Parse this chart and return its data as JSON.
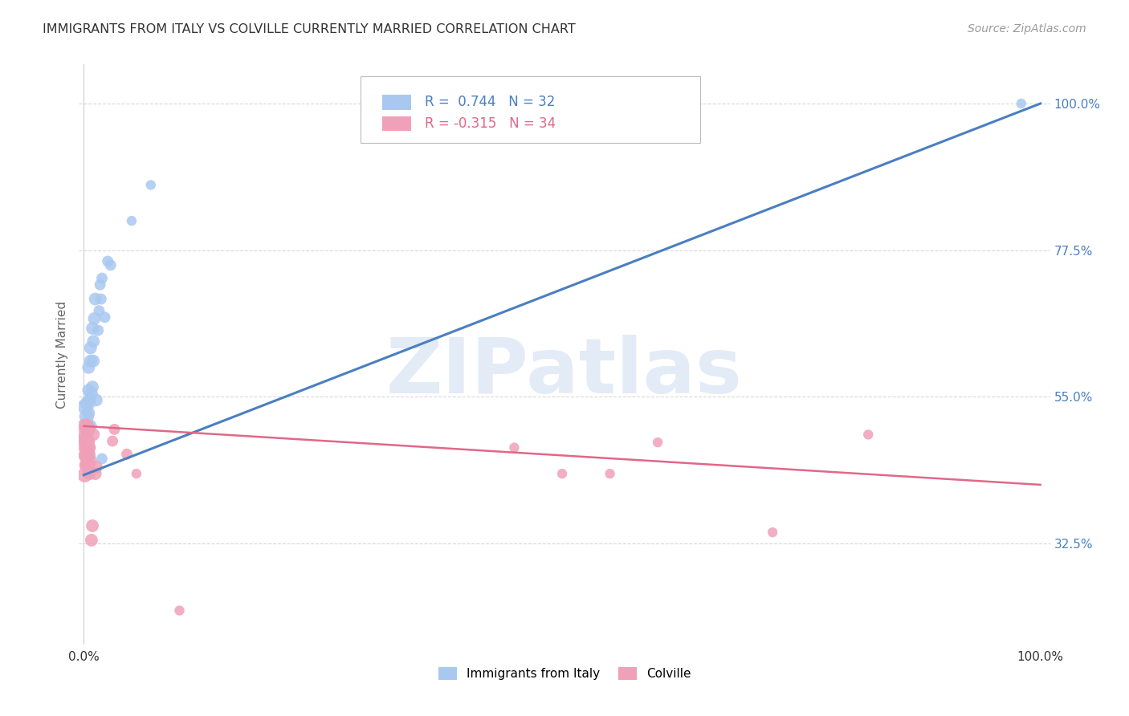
{
  "title": "IMMIGRANTS FROM ITALY VS COLVILLE CURRENTLY MARRIED CORRELATION CHART",
  "source": "Source: ZipAtlas.com",
  "ylabel": "Currently Married",
  "legend_blue_r": "0.744",
  "legend_blue_n": "32",
  "legend_pink_r": "-0.315",
  "legend_pink_n": "34",
  "blue_color": "#a8c8f0",
  "pink_color": "#f0a0b8",
  "blue_line_color": "#4a7fc0",
  "pink_line_color": "#e06888",
  "blue_scatter": [
    [
      0.001,
      0.535
    ],
    [
      0.003,
      0.52
    ],
    [
      0.004,
      0.54
    ],
    [
      0.005,
      0.56
    ],
    [
      0.004,
      0.5
    ],
    [
      0.005,
      0.525
    ],
    [
      0.005,
      0.595
    ],
    [
      0.006,
      0.46
    ],
    [
      0.006,
      0.545
    ],
    [
      0.007,
      0.605
    ],
    [
      0.007,
      0.625
    ],
    [
      0.007,
      0.505
    ],
    [
      0.008,
      0.555
    ],
    [
      0.009,
      0.655
    ],
    [
      0.009,
      0.565
    ],
    [
      0.01,
      0.635
    ],
    [
      0.01,
      0.605
    ],
    [
      0.011,
      0.67
    ],
    [
      0.012,
      0.7
    ],
    [
      0.013,
      0.545
    ],
    [
      0.015,
      0.652
    ],
    [
      0.016,
      0.682
    ],
    [
      0.017,
      0.722
    ],
    [
      0.018,
      0.7
    ],
    [
      0.019,
      0.732
    ],
    [
      0.019,
      0.455
    ],
    [
      0.022,
      0.672
    ],
    [
      0.025,
      0.758
    ],
    [
      0.028,
      0.752
    ],
    [
      0.05,
      0.82
    ],
    [
      0.07,
      0.875
    ],
    [
      0.98,
      1.0
    ]
  ],
  "pink_scatter": [
    [
      0.001,
      0.475
    ],
    [
      0.001,
      0.505
    ],
    [
      0.001,
      0.43
    ],
    [
      0.002,
      0.46
    ],
    [
      0.002,
      0.485
    ],
    [
      0.002,
      0.492
    ],
    [
      0.003,
      0.505
    ],
    [
      0.003,
      0.445
    ],
    [
      0.003,
      0.46
    ],
    [
      0.003,
      0.482
    ],
    [
      0.004,
      0.502
    ],
    [
      0.004,
      0.445
    ],
    [
      0.004,
      0.472
    ],
    [
      0.005,
      0.482
    ],
    [
      0.005,
      0.465
    ],
    [
      0.006,
      0.472
    ],
    [
      0.006,
      0.432
    ],
    [
      0.007,
      0.452
    ],
    [
      0.008,
      0.33
    ],
    [
      0.009,
      0.352
    ],
    [
      0.01,
      0.492
    ],
    [
      0.012,
      0.432
    ],
    [
      0.013,
      0.442
    ],
    [
      0.03,
      0.482
    ],
    [
      0.032,
      0.5
    ],
    [
      0.045,
      0.462
    ],
    [
      0.055,
      0.432
    ],
    [
      0.1,
      0.222
    ],
    [
      0.45,
      0.472
    ],
    [
      0.5,
      0.432
    ],
    [
      0.55,
      0.432
    ],
    [
      0.6,
      0.48
    ],
    [
      0.72,
      0.342
    ],
    [
      0.82,
      0.492
    ]
  ],
  "blue_line_x": [
    0.0,
    1.0
  ],
  "blue_line_y": [
    0.43,
    1.0
  ],
  "pink_line_x": [
    0.0,
    1.0
  ],
  "pink_line_y": [
    0.505,
    0.415
  ],
  "xlim": [
    -0.005,
    1.01
  ],
  "ylim": [
    0.17,
    1.06
  ],
  "ytick_values": [
    1.0,
    0.775,
    0.55,
    0.325
  ],
  "ytick_labels": [
    "100.0%",
    "77.5%",
    "55.0%",
    "32.5%"
  ],
  "xtick_values": [
    0.0,
    1.0
  ],
  "xtick_labels": [
    "0.0%",
    "100.0%"
  ],
  "legend_items": [
    "Immigrants from Italy",
    "Colville"
  ],
  "watermark": "ZIPatlas",
  "watermark_color": "#c8d8f0",
  "background_color": "#ffffff",
  "grid_color": "#d8d8d8",
  "right_label_color": "#4a7fc0",
  "title_color": "#333333",
  "source_color": "#999999"
}
